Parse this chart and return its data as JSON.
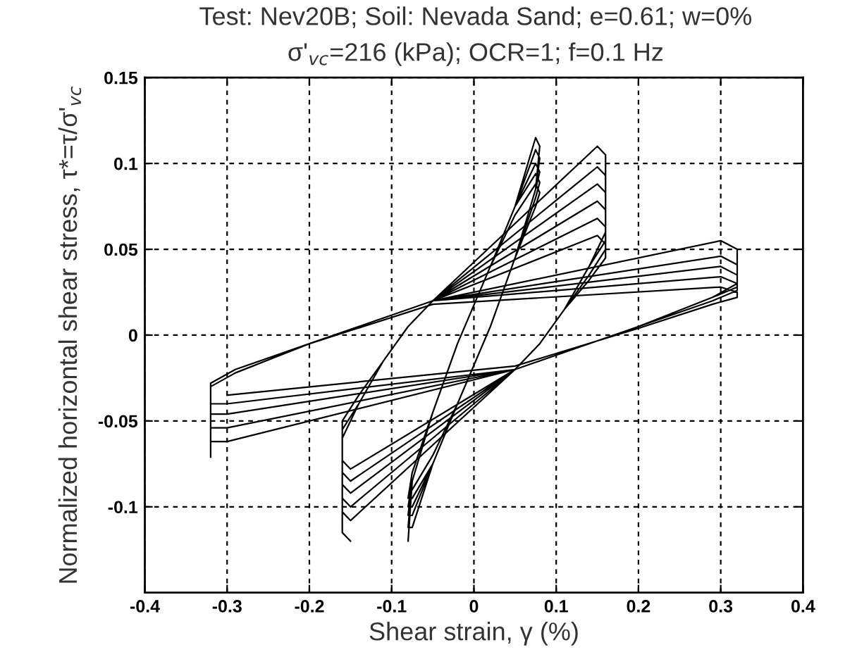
{
  "chart_data": {
    "type": "line",
    "title": "Test: Nev20B; Soil: Nevada Sand; e=0.61; w=0%",
    "subtitle": "σ'$_{vc}$=216 (kPa); OCR=1; f=0.1 Hz",
    "xlabel": "Shear strain, γ (%)",
    "ylabel": "Normalized horizontal shear stress, τ*=τ/σ'$_{vc}$",
    "xlim": [
      -0.4,
      0.4
    ],
    "xticks": [
      -0.4,
      -0.3,
      -0.2,
      -0.1,
      0,
      0.1,
      0.2,
      0.3,
      0.4
    ],
    "ylim": [
      -0.15,
      0.15
    ],
    "yticks": [
      -0.1,
      -0.05,
      0,
      0.05,
      0.1,
      0.15
    ],
    "grid": true,
    "line_style": "solid",
    "marker": "none",
    "series": [
      {
        "color": "#000000",
        "x": [
          -0.32,
          -0.32,
          -0.29,
          -0.2,
          -0.05,
          0.3,
          0.32,
          0.32,
          0.29,
          0.2,
          0.05,
          -0.3,
          -0.32,
          -0.32,
          -0.29,
          -0.2,
          -0.05,
          0.3,
          0.32,
          0.32,
          0.29,
          0.2,
          0.05,
          -0.3,
          -0.32,
          -0.32,
          -0.29,
          -0.2,
          -0.05,
          0.3,
          0.32,
          0.32,
          0.29,
          0.2,
          0.05,
          -0.3,
          -0.32,
          -0.32,
          -0.29,
          -0.2,
          -0.05,
          0.3,
          0.32,
          0.32,
          0.29,
          0.2,
          0.05,
          -0.3,
          -0.32,
          -0.32,
          -0.29,
          -0.2,
          -0.05,
          0.3,
          0.32,
          0.32,
          0.29,
          0.2,
          0.05,
          -0.3
        ],
        "values": [
          -0.071,
          -0.03,
          -0.022,
          -0.005,
          0.02,
          0.055,
          0.05,
          0.03,
          0.022,
          0.005,
          -0.02,
          -0.062,
          -0.062,
          -0.03,
          -0.022,
          -0.005,
          0.02,
          0.046,
          0.041,
          0.03,
          0.022,
          0.005,
          -0.02,
          -0.054,
          -0.054,
          -0.03,
          -0.022,
          -0.005,
          0.02,
          0.04,
          0.035,
          0.028,
          0.022,
          0.005,
          -0.02,
          -0.046,
          -0.046,
          -0.03,
          -0.022,
          -0.005,
          0.02,
          0.034,
          0.03,
          0.026,
          0.02,
          0.005,
          -0.02,
          -0.04,
          -0.04,
          -0.028,
          -0.02,
          -0.005,
          0.018,
          0.028,
          0.025,
          0.022,
          0.018,
          0.004,
          -0.018,
          -0.035
        ]
      },
      {
        "color": "#000000",
        "x": [
          -0.15,
          -0.16,
          -0.16,
          -0.14,
          -0.11,
          -0.08,
          -0.05,
          0.15,
          0.16,
          0.16,
          0.14,
          0.11,
          0.08,
          0.05,
          -0.15,
          -0.16,
          -0.16,
          -0.14,
          -0.11,
          -0.08,
          -0.05,
          0.15,
          0.16,
          0.16,
          0.14,
          0.11,
          0.08,
          0.05,
          -0.15,
          -0.16,
          -0.16,
          -0.14,
          -0.11,
          -0.08,
          -0.05,
          0.15,
          0.16,
          0.16,
          0.14,
          0.11,
          0.08,
          0.05,
          -0.15,
          -0.16,
          -0.16,
          -0.14,
          -0.11,
          -0.08,
          -0.05,
          0.15,
          0.16,
          0.16,
          0.14,
          0.11,
          0.08,
          0.05,
          -0.15,
          -0.16,
          -0.16,
          -0.14,
          -0.11,
          -0.08,
          -0.05,
          0.15,
          0.16,
          0.16,
          0.14,
          0.11,
          0.08,
          0.05,
          -0.15,
          -0.16,
          -0.16,
          -0.14,
          -0.11,
          -0.08,
          -0.05,
          0.15,
          0.16,
          0.16,
          0.14,
          0.11,
          0.08,
          0.05
        ],
        "values": [
          -0.12,
          -0.115,
          -0.06,
          -0.04,
          -0.015,
          0.005,
          0.02,
          0.11,
          0.105,
          0.06,
          0.04,
          0.015,
          -0.005,
          -0.02,
          -0.108,
          -0.103,
          -0.06,
          -0.04,
          -0.015,
          0.005,
          0.02,
          0.098,
          0.093,
          0.06,
          0.04,
          0.015,
          -0.005,
          -0.02,
          -0.1,
          -0.095,
          -0.06,
          -0.04,
          -0.015,
          0.005,
          0.02,
          0.088,
          0.083,
          0.055,
          0.04,
          0.015,
          -0.005,
          -0.02,
          -0.092,
          -0.087,
          -0.06,
          -0.04,
          -0.015,
          0.005,
          0.02,
          0.078,
          0.073,
          0.05,
          0.035,
          0.015,
          -0.005,
          -0.02,
          -0.085,
          -0.08,
          -0.055,
          -0.04,
          -0.015,
          0.005,
          0.02,
          0.068,
          0.063,
          0.05,
          0.035,
          0.015,
          -0.005,
          -0.02,
          -0.078,
          -0.073,
          -0.05,
          -0.035,
          -0.015,
          0.005,
          0.02,
          0.058,
          0.053,
          0.045,
          0.032,
          0.015,
          -0.005,
          -0.02
        ]
      },
      {
        "color": "#000000",
        "x": [
          -0.08,
          -0.075,
          -0.05,
          -0.02,
          0.02,
          0.05,
          0.075,
          0.08,
          0.075,
          0.05,
          0.02,
          -0.02,
          -0.05,
          -0.075,
          -0.08,
          -0.075,
          -0.05,
          -0.02,
          0.02,
          0.05,
          0.075,
          0.08,
          0.075,
          0.05,
          0.02,
          -0.02,
          -0.05,
          -0.075,
          -0.08,
          -0.075,
          -0.05,
          -0.02,
          0.02,
          0.05,
          0.075,
          0.08,
          0.075,
          0.05,
          0.02,
          -0.02,
          -0.05,
          -0.075,
          -0.08,
          -0.075,
          -0.05,
          -0.02,
          0.02,
          0.05,
          0.075,
          0.08,
          0.075,
          0.05,
          0.02,
          -0.02,
          -0.05,
          -0.075,
          -0.08,
          -0.075,
          -0.05,
          -0.02,
          0.02,
          0.05,
          0.075,
          0.08,
          0.075,
          0.05,
          0.02,
          -0.02,
          -0.05,
          -0.075
        ],
        "values": [
          -0.12,
          -0.085,
          -0.045,
          -0.005,
          0.04,
          0.075,
          0.115,
          0.11,
          0.085,
          0.045,
          0.005,
          -0.04,
          -0.075,
          -0.112,
          -0.112,
          -0.085,
          -0.045,
          -0.005,
          0.04,
          0.075,
          0.108,
          0.103,
          0.085,
          0.045,
          0.005,
          -0.04,
          -0.075,
          -0.105,
          -0.105,
          -0.085,
          -0.045,
          -0.005,
          0.04,
          0.075,
          0.1,
          0.095,
          0.085,
          0.045,
          0.005,
          -0.04,
          -0.075,
          -0.1,
          -0.1,
          -0.085,
          -0.045,
          -0.005,
          0.04,
          0.075,
          0.094,
          0.089,
          0.08,
          0.045,
          0.005,
          -0.04,
          -0.075,
          -0.095,
          -0.095,
          -0.08,
          -0.045,
          -0.005,
          0.04,
          0.07,
          0.088,
          0.083,
          0.075,
          0.045,
          0.005,
          -0.04,
          -0.07,
          -0.09
        ]
      }
    ]
  }
}
